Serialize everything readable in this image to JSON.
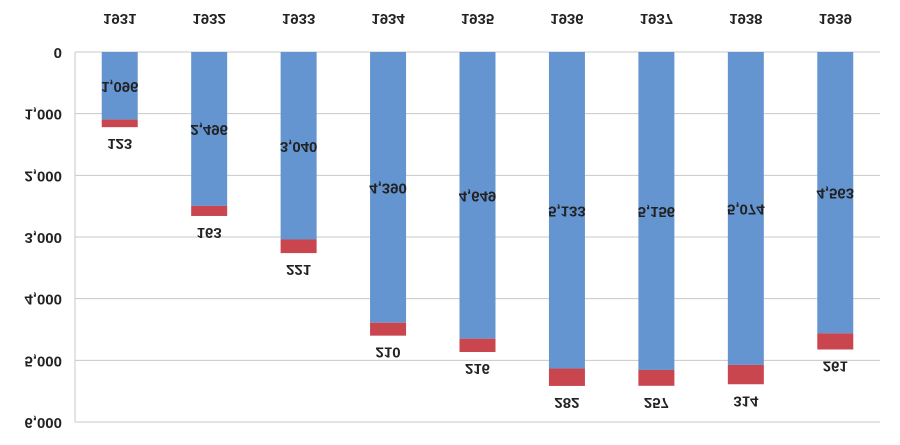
{
  "chart_data": {
    "type": "stacked_bar",
    "categories": [
      "1931",
      "1932",
      "1933",
      "1934",
      "1935",
      "1936",
      "1937",
      "1938",
      "1939"
    ],
    "series": [
      {
        "color": "#6495d0",
        "values": [
          1096,
          2496,
          3040,
          4390,
          4649,
          5133,
          5156,
          5074,
          4563
        ],
        "value_labels": [
          "1,096",
          "2,496",
          "3,040",
          "4,390",
          "4,649",
          "5,133",
          "5,156",
          "5,074",
          "4,563"
        ]
      },
      {
        "color": "#c9464f",
        "values": [
          123,
          163,
          221,
          210,
          216,
          282,
          257,
          314,
          261
        ]
      }
    ],
    "ylim": [
      0,
      6000
    ],
    "yticks": [
      0,
      {
        "value": 1000,
        "label": "1,000"
      },
      {
        "value": 2000,
        "label": "2,000"
      },
      {
        "value": 3000,
        "label": "3,000"
      },
      {
        "value": 4000,
        "label": "4,000"
      },
      {
        "value": 5000,
        "label": "5,000"
      },
      {
        "value": 6000,
        "label": "6,000"
      }
    ],
    "grid": true
  }
}
